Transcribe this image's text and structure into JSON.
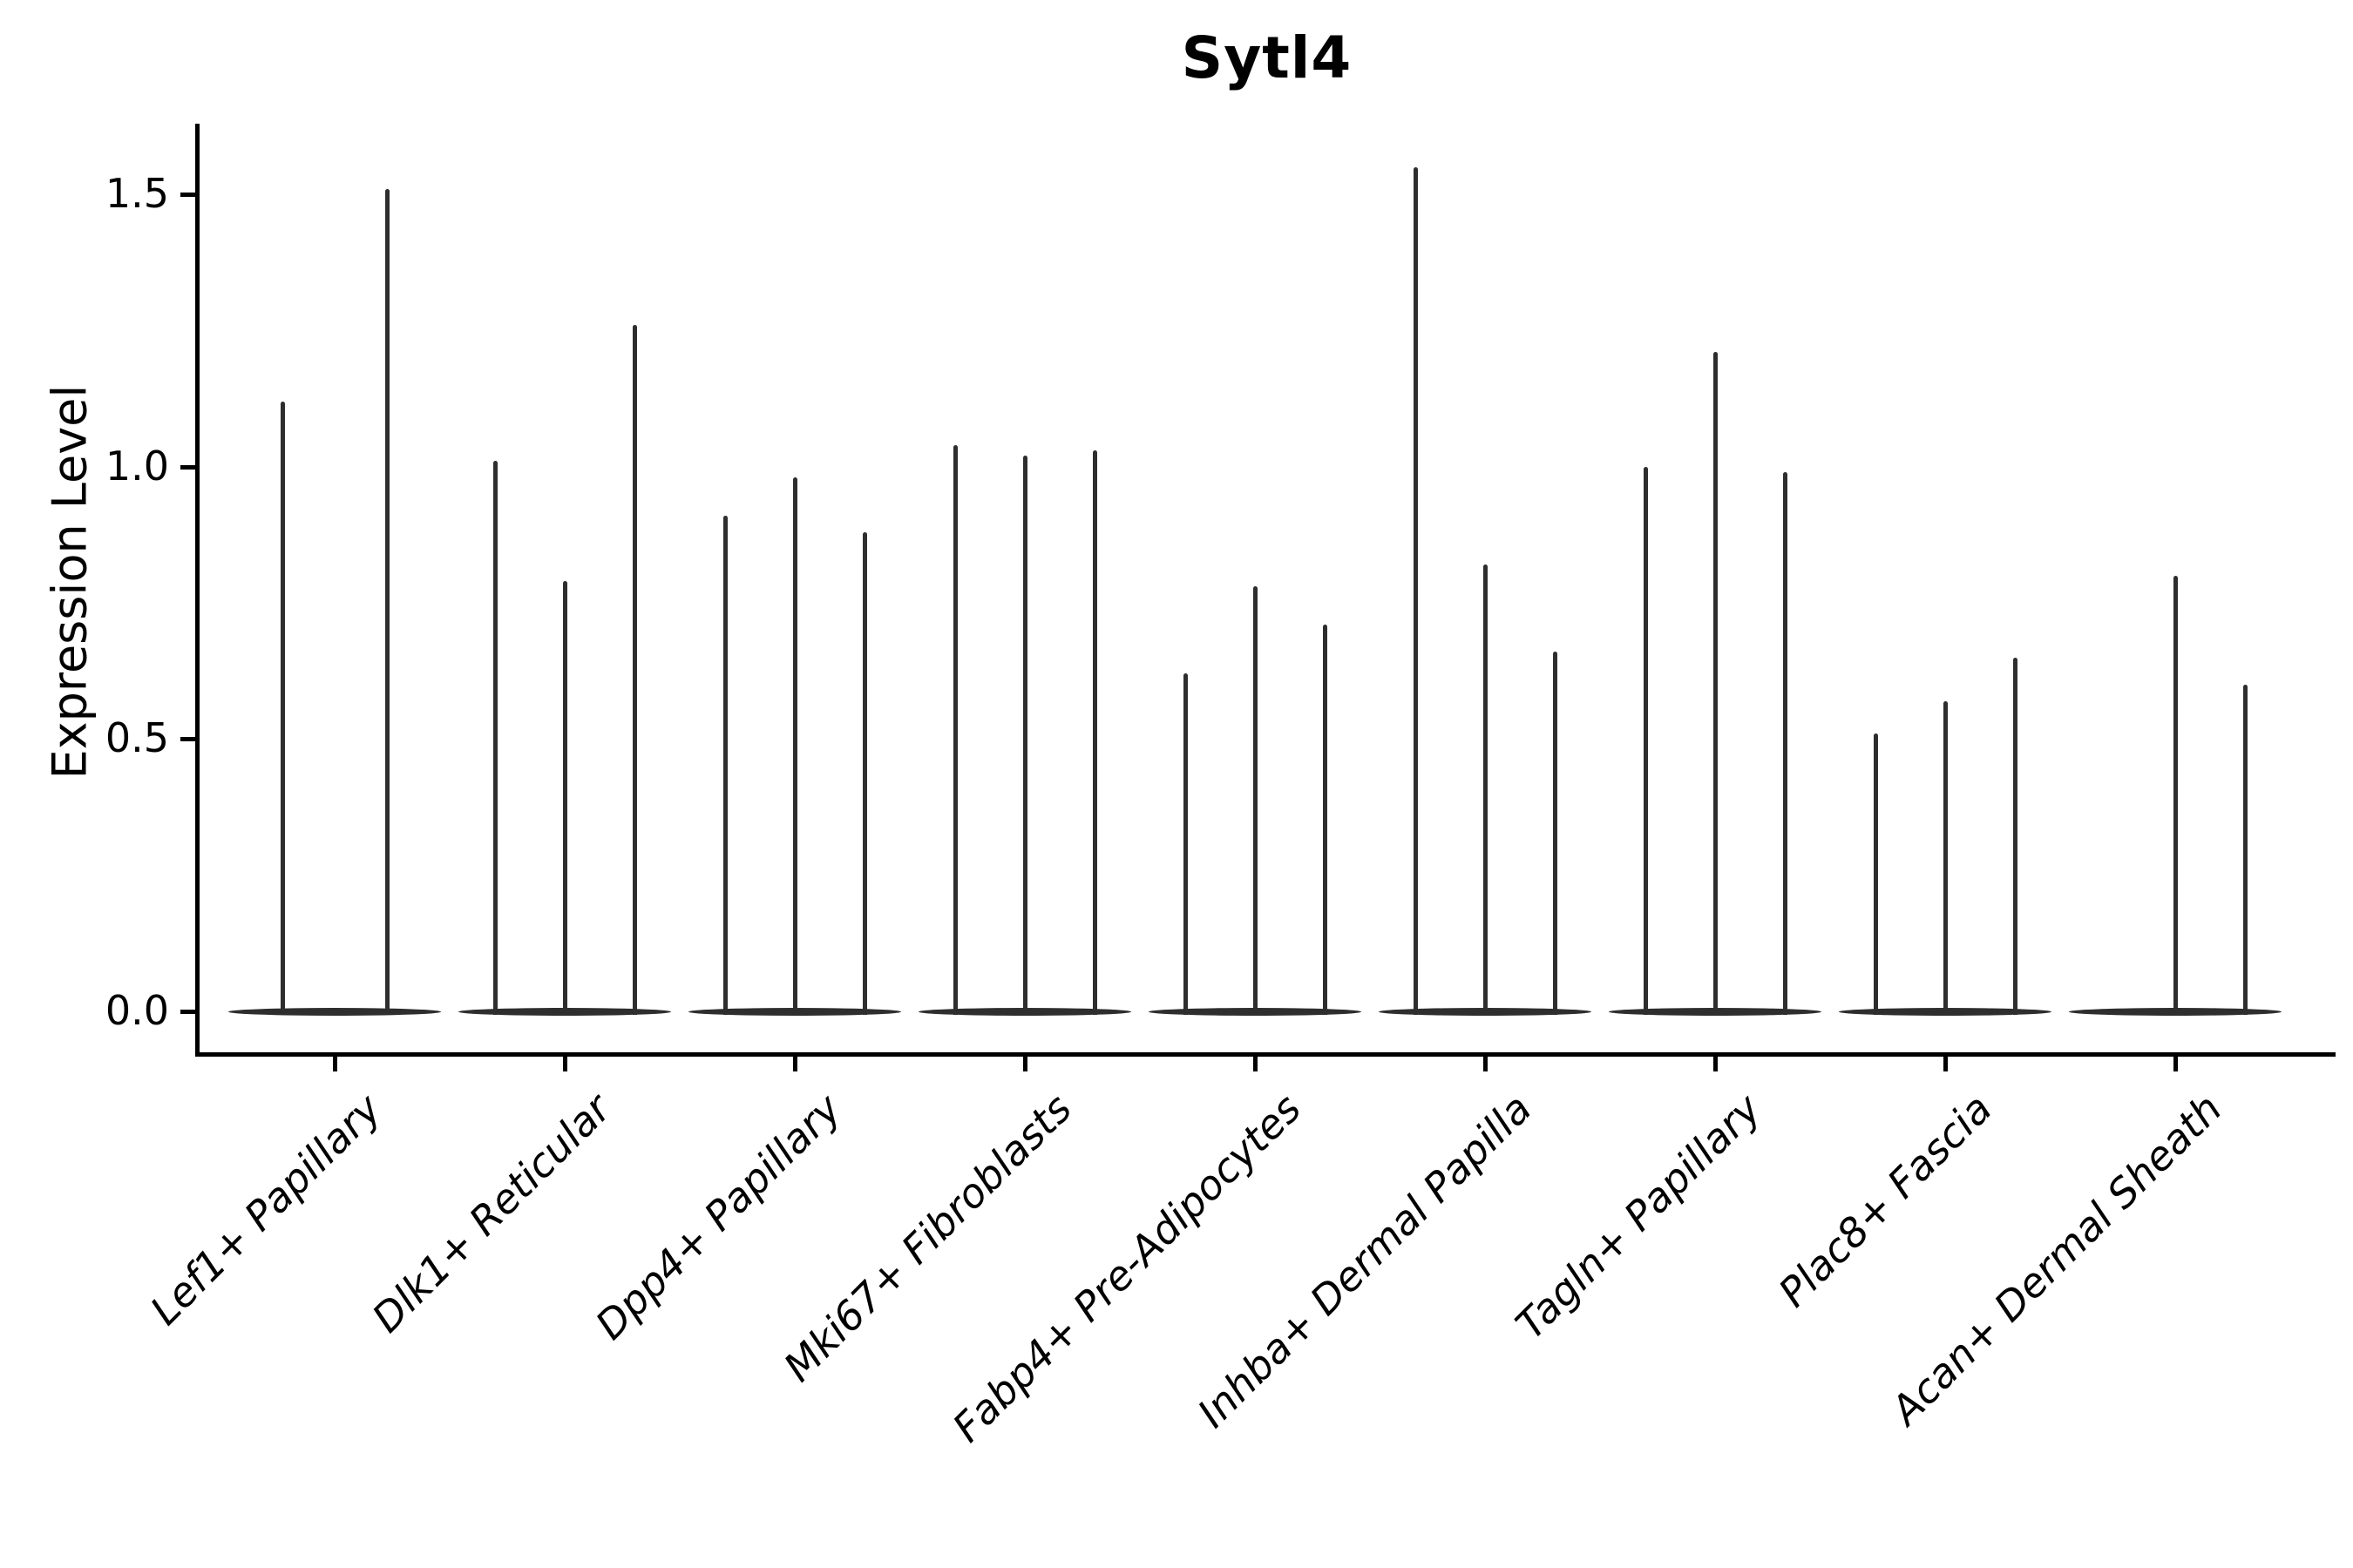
{
  "title": "Sytl4",
  "axes": {
    "ylabel": "Expression Level",
    "ytick_labels": [
      "0.0",
      "0.5",
      "1.0",
      "1.5"
    ]
  },
  "colors": {
    "violin": "#2e2e2e",
    "axis": "#000000",
    "background": "#ffffff"
  },
  "chart_data": {
    "type": "violin",
    "title": "Sytl4",
    "xlabel": "",
    "ylabel": "Expression Level",
    "ylim": [
      0,
      1.63
    ],
    "yticks": [
      0.0,
      0.5,
      1.0,
      1.5
    ],
    "grid": false,
    "legend_position": "none",
    "categories": [
      "Lef1+ Papillary",
      "Dlk1+ Reticular",
      "Dpp4+ Papillary",
      "Mki67+ Fibroblasts",
      "Fabp4+ Pre-Adipocytes",
      "Inhba+ Dermal Papilla",
      "Tagln+ Papillary",
      "Plac8+ Fascia",
      "Acan+ Dermal Sheath"
    ],
    "groups": [
      {
        "category": "Lef1+ Papillary",
        "violin_max_expression": [
          1.12,
          1.51
        ]
      },
      {
        "category": "Dlk1+ Reticular",
        "violin_max_expression": [
          1.01,
          0.79,
          1.26
        ]
      },
      {
        "category": "Dpp4+ Papillary",
        "violin_max_expression": [
          0.91,
          0.98,
          0.88
        ]
      },
      {
        "category": "Mki67+ Fibroblasts",
        "violin_max_expression": [
          1.04,
          1.02,
          1.03
        ]
      },
      {
        "category": "Fabp4+ Pre-Adipocytes",
        "violin_max_expression": [
          0.62,
          0.78,
          0.71
        ]
      },
      {
        "category": "Inhba+ Dermal Papilla",
        "violin_max_expression": [
          1.55,
          0.82,
          0.66
        ]
      },
      {
        "category": "Tagln+ Papillary",
        "violin_max_expression": [
          1.0,
          1.21,
          0.99
        ]
      },
      {
        "category": "Plac8+ Fascia",
        "violin_max_expression": [
          0.51,
          0.57,
          0.65
        ]
      },
      {
        "category": "Acan+ Dermal Sheath",
        "violin_max_expression": [
          0.0,
          0.8,
          0.6
        ]
      }
    ],
    "notes": "Each violin's density mass sits flat at expression 0 (wide thin base); hair-thin tails rise to the listed per-violin maxima. No fill colors or legend; all glyphs near-black."
  }
}
